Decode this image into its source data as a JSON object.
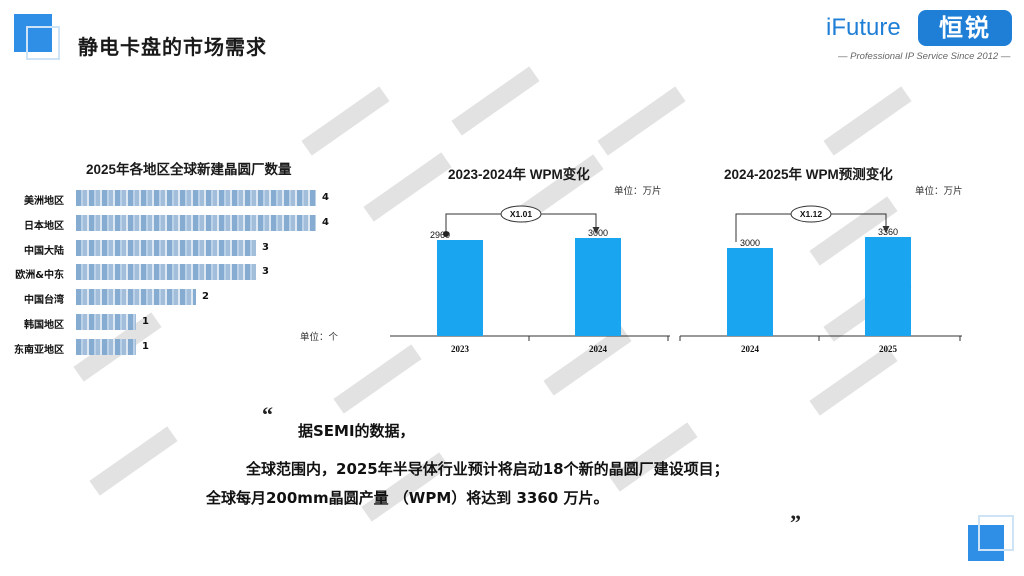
{
  "header": {
    "title": "静电卡盘的市场需求",
    "logo_text": "iFuture",
    "logo_badge": "恒锐",
    "logo_tagline": "— Professional IP Service Since 2012 —"
  },
  "chart_data": [
    {
      "type": "bar",
      "orientation": "horizontal",
      "title": "2025年各地区全球新建晶圆厂数量",
      "unit_label": "单位：个",
      "categories": [
        "美洲地区",
        "日本地区",
        "中国大陆",
        "欧洲&中东",
        "中国台湾",
        "韩国地区",
        "东南亚地区"
      ],
      "values": [
        4,
        4,
        3,
        3,
        2,
        1,
        1
      ],
      "value_labels": [
        "4",
        "4",
        "3",
        "3",
        "2",
        "1",
        "1"
      ],
      "xlim": [
        0,
        4
      ]
    },
    {
      "type": "bar",
      "title": "2023-2024年 WPM变化",
      "unit_label": "单位：万片",
      "categories": [
        "2023",
        "2024"
      ],
      "values": [
        2960,
        3000
      ],
      "value_labels": [
        "2960",
        "3000"
      ],
      "growth_label": "X1.01",
      "color": "#19a5f0"
    },
    {
      "type": "bar",
      "title": "2024-2025年 WPM预测变化",
      "unit_label": "单位：万片",
      "categories": [
        "2024",
        "2025"
      ],
      "values": [
        3000,
        3360
      ],
      "value_labels": [
        "3000",
        "3360"
      ],
      "growth_label": "X1.12",
      "color": "#19a5f0"
    }
  ],
  "quote": {
    "open_mark": "“",
    "close_mark": "”",
    "line1": "据SEMI的数据，",
    "line2": "全球范围内，2025年半导体行业预计将启动18个新的晶圆厂建设项目；",
    "line3": "全球每月200mm晶圆产量 （WPM）将达到 3360 万片。"
  }
}
